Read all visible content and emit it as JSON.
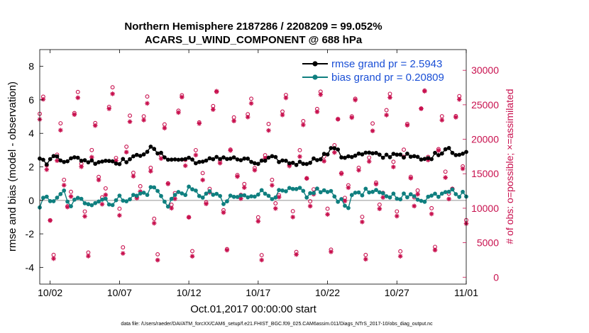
{
  "chart_data": {
    "type": "line",
    "title_line1": "Northern Hemisphere 2187286 / 2208209 = 99.052%",
    "title_line2": "ACARS_U_WIND_COMPONENT @ 688 hPa",
    "ylabel_left": "rmse and bias (model - observation)",
    "ylabel_right": "# of obs: o=possible; ×=assimilated",
    "xlabel": "Oct.01,2017 00:00:00 start",
    "footer": "data file: /Users/raeder/DAI/ATM_forcXX/CAM6_setup/f.e21.FHIST_BGC.f09_025.CAM6assim.011/Diags_NTrS_2017-10/obs_diag_output.nc",
    "ylim_left": [
      -5,
      9
    ],
    "ylim_right": [
      -1000,
      33000
    ],
    "xlim": [
      0.25,
      31.0
    ],
    "left_ticks": [
      -4,
      -2,
      0,
      2,
      4,
      6,
      8
    ],
    "left_tick_labels": [
      "-4",
      "-2",
      "0",
      "2",
      "4",
      "6",
      "8"
    ],
    "right_ticks": [
      0,
      5000,
      10000,
      15000,
      20000,
      25000,
      30000
    ],
    "right_tick_labels": [
      "0",
      "5000",
      "10000",
      "15000",
      "20000",
      "25000",
      "30000"
    ],
    "x_ticks": [
      1,
      6,
      11,
      16,
      21,
      26,
      31
    ],
    "x_tick_labels": [
      "10/02",
      "10/07",
      "10/12",
      "10/17",
      "10/22",
      "10/27",
      "11/01"
    ],
    "legend": {
      "rmse_label": "rmse grand pr = 2.5943",
      "bias_label": "bias grand pr = 0.20809"
    },
    "colors": {
      "rmse": "#000000",
      "bias": "#0f7f7f",
      "obs": "#c8104e",
      "zero": "#bdbdbd"
    },
    "rmse_anchors": [
      [
        0.3,
        2.5
      ],
      [
        0.6,
        2.2
      ],
      [
        1.0,
        2.4
      ],
      [
        1.4,
        2.7
      ],
      [
        2.0,
        2.4
      ],
      [
        3.0,
        2.5
      ],
      [
        4.0,
        2.3
      ],
      [
        5.0,
        2.4
      ],
      [
        6.0,
        2.3
      ],
      [
        7.0,
        2.5
      ],
      [
        7.8,
        2.9
      ],
      [
        8.3,
        3.1
      ],
      [
        9.0,
        2.7
      ],
      [
        10.0,
        2.4
      ],
      [
        11.0,
        2.5
      ],
      [
        12.0,
        2.2
      ],
      [
        13.0,
        2.6
      ],
      [
        14.0,
        2.5
      ],
      [
        15.0,
        2.4
      ],
      [
        16.0,
        2.2
      ],
      [
        17.0,
        2.5
      ],
      [
        18.0,
        2.3
      ],
      [
        19.0,
        2.2
      ],
      [
        20.0,
        2.4
      ],
      [
        21.0,
        2.8
      ],
      [
        21.5,
        3.2
      ],
      [
        22.0,
        2.6
      ],
      [
        23.0,
        2.7
      ],
      [
        24.0,
        2.8
      ],
      [
        25.0,
        2.6
      ],
      [
        26.0,
        2.8
      ],
      [
        27.0,
        2.6
      ],
      [
        28.0,
        2.4
      ],
      [
        29.0,
        2.8
      ],
      [
        29.7,
        3.2
      ],
      [
        30.3,
        2.7
      ],
      [
        31.0,
        2.8
      ]
    ],
    "bias_anchors": [
      [
        0.3,
        -0.3
      ],
      [
        0.6,
        0.1
      ],
      [
        1.5,
        0.0
      ],
      [
        2.0,
        0.5
      ],
      [
        2.3,
        -0.3
      ],
      [
        3.0,
        0.0
      ],
      [
        4.0,
        -0.1
      ],
      [
        5.0,
        0.1
      ],
      [
        5.5,
        -0.2
      ],
      [
        6.0,
        0.1
      ],
      [
        7.0,
        0.2
      ],
      [
        8.0,
        0.5
      ],
      [
        8.5,
        0.8
      ],
      [
        9.0,
        0.2
      ],
      [
        9.5,
        -0.2
      ],
      [
        10.0,
        0.3
      ],
      [
        11.0,
        0.6
      ],
      [
        12.0,
        0.3
      ],
      [
        13.0,
        0.4
      ],
      [
        13.5,
        -0.3
      ],
      [
        14.0,
        0.2
      ],
      [
        15.0,
        0.2
      ],
      [
        16.0,
        0.5
      ],
      [
        17.0,
        0.3
      ],
      [
        18.0,
        0.5
      ],
      [
        19.0,
        0.6
      ],
      [
        19.5,
        0.1
      ],
      [
        20.0,
        0.6
      ],
      [
        21.0,
        0.5
      ],
      [
        22.0,
        0.0
      ],
      [
        22.5,
        -0.3
      ],
      [
        23.0,
        0.5
      ],
      [
        24.0,
        0.5
      ],
      [
        25.0,
        0.3
      ],
      [
        26.0,
        0.3
      ],
      [
        27.0,
        0.2
      ],
      [
        28.0,
        0.1
      ],
      [
        29.0,
        0.4
      ],
      [
        30.0,
        0.8
      ],
      [
        30.5,
        0.3
      ],
      [
        31.0,
        0.4
      ]
    ],
    "obs_count_pattern": [
      23500,
      26000,
      16000,
      8500,
      3000,
      17500,
      22000,
      14000,
      10500,
      12000
    ],
    "obs_start_day": 0.25
  }
}
